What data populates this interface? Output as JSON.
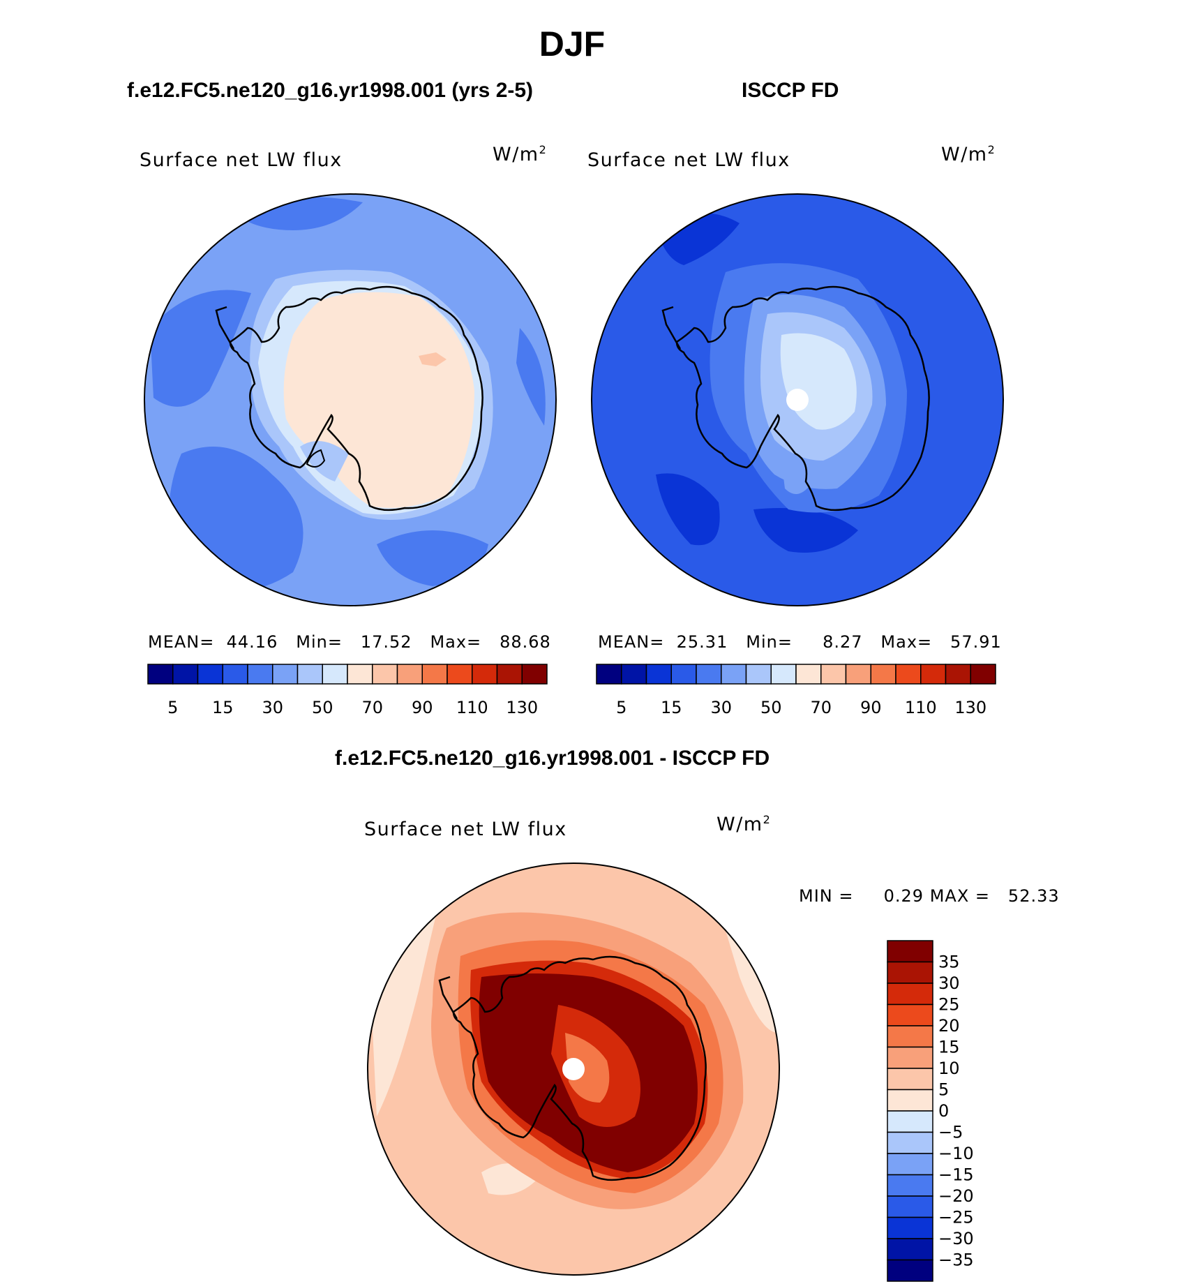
{
  "figure": {
    "season": "DJF",
    "panels": [
      {
        "id": "model",
        "title": "f.e12.FC5.ne120_g16.yr1998.001 (yrs 2-5)",
        "variable": "Surface net LW flux",
        "units_base": "W/m",
        "units_exp": "2",
        "stats": {
          "mean_label": "MEAN=",
          "mean": "44.16",
          "min_label": "Min=",
          "min": "17.52",
          "max_label": "Max=",
          "max": "88.68"
        }
      },
      {
        "id": "obs",
        "title": "ISCCP FD",
        "variable": "Surface net LW flux",
        "units_base": "W/m",
        "units_exp": "2",
        "stats": {
          "mean_label": "MEAN=",
          "mean": "25.31",
          "min_label": "Min=",
          "min": "8.27",
          "max_label": "Max=",
          "max": "57.91"
        }
      },
      {
        "id": "diff",
        "title": "f.e12.FC5.ne120_g16.yr1998.001 - ISCCP FD",
        "variable": "Surface net LW flux",
        "units_base": "W/m",
        "units_exp": "2",
        "stats": {
          "min_label": "MIN =",
          "min": "0.29",
          "max_label": "MAX =",
          "max": "52.33"
        }
      }
    ]
  },
  "colors": {
    "abs_scale": [
      "#00007f",
      "#0014a6",
      "#0a34d6",
      "#2a5ae8",
      "#4a7af0",
      "#7aa2f6",
      "#aac6fa",
      "#d6e8fc",
      "#fde6d6",
      "#fcc6aa",
      "#f8a07a",
      "#f47848",
      "#ec4a1c",
      "#d42a0a",
      "#aa1404",
      "#800000"
    ],
    "diff_scale_top_to_bottom": [
      "#800000",
      "#aa1404",
      "#d42a0a",
      "#ec4a1c",
      "#f47848",
      "#f8a07a",
      "#fcc6aa",
      "#fde6d6",
      "#d6e8fc",
      "#aac6fa",
      "#7aa2f6",
      "#4a7af0",
      "#2a5ae8",
      "#0a34d6",
      "#0014a6",
      "#00007f"
    ],
    "coast": "#000000"
  },
  "colorbars": {
    "abs_labels": [
      "5",
      "15",
      "30",
      "50",
      "70",
      "90",
      "110",
      "130"
    ],
    "diff_labels": [
      "35",
      "30",
      "25",
      "20",
      "15",
      "10",
      "5",
      "0",
      "−5",
      "−10",
      "−15",
      "−20",
      "−25",
      "−30",
      "−35"
    ]
  }
}
